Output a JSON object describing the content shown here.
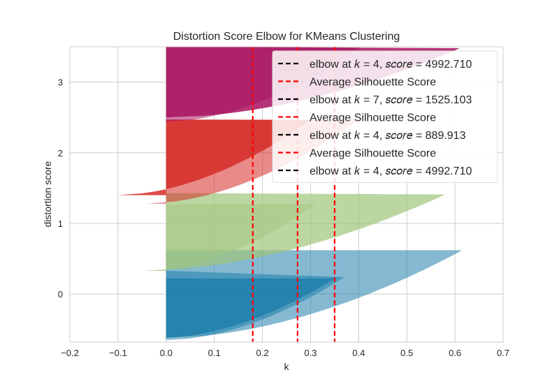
{
  "chart_data": {
    "type": "area",
    "title": "Distortion Score Elbow for KMeans Clustering",
    "xlabel": "k",
    "ylabel": "distortion score",
    "xlim": [
      -0.2,
      0.7
    ],
    "ylim": [
      -0.68,
      3.5
    ],
    "xticks": [
      -0.2,
      -0.1,
      0.0,
      0.1,
      0.2,
      0.3,
      0.4,
      0.5,
      0.6,
      0.7
    ],
    "xtick_labels": [
      "−0.2",
      "−0.1",
      "0.0",
      "0.1",
      "0.2",
      "0.3",
      "0.4",
      "0.5",
      "0.6",
      "0.7"
    ],
    "yticks": [
      0,
      1,
      2,
      3
    ],
    "ytick_labels": [
      "0",
      "1",
      "2",
      "3"
    ],
    "grid": true,
    "legend_position": "top-right",
    "colors": {
      "cluster_0": "#1f7fab",
      "cluster_1": "#9fc47b",
      "cluster_2": "#d62b26",
      "cluster_3": "#a8125f",
      "elbow_line": "#000000",
      "avg_line": "#ff0000"
    },
    "vlines": [
      {
        "x": 0.18,
        "color": "#ff0000"
      },
      {
        "x": 0.273,
        "color": "#ff0000"
      },
      {
        "x": 0.35,
        "color": "#ff0000"
      }
    ],
    "series": [
      {
        "cluster": 0,
        "color": "#1f7fab",
        "alpha": 0.85,
        "y_low": -0.62,
        "y_high": 0.22,
        "peak_y": 0.22,
        "max_x": 0.35,
        "min_x": -0.01
      },
      {
        "cluster": 0,
        "color": "#1f7fab",
        "alpha": 0.55,
        "y_low": -0.65,
        "y_high": 0.33,
        "peak_y": 0.24,
        "max_x": 0.37,
        "min_x": 0.0
      },
      {
        "cluster": 0,
        "color": "#1f7fab",
        "alpha": 0.55,
        "y_low": -0.62,
        "y_high": 0.62,
        "peak_y": 0.62,
        "max_x": 0.615,
        "min_x": 0.0
      },
      {
        "cluster": 1,
        "color": "#9fc47b",
        "alpha": 0.7,
        "y_low": 0.33,
        "y_high": 1.43,
        "peak_y": 1.41,
        "max_x": 0.58,
        "min_x": -0.05
      },
      {
        "cluster": 1,
        "color": "#9fc47b",
        "alpha": 0.5,
        "y_low": 0.33,
        "y_high": 1.27,
        "peak_y": 1.27,
        "max_x": 0.31,
        "min_x": -0.04
      },
      {
        "cluster": 2,
        "color": "#d62b26",
        "alpha": 0.85,
        "y_low": 1.4,
        "y_high": 2.47,
        "peak_y": 2.46,
        "max_x": 0.3,
        "min_x": -0.1
      },
      {
        "cluster": 2,
        "color": "#d62b26",
        "alpha": 0.55,
        "y_low": 1.28,
        "y_high": 2.47,
        "peak_y": 2.47,
        "max_x": 0.4,
        "min_x": -0.04
      },
      {
        "cluster": 3,
        "color": "#a8125f",
        "alpha": 0.85,
        "y_low": 2.5,
        "y_high": 3.5,
        "peak_y": 3.48,
        "max_x": 0.61,
        "min_x": 0.0
      },
      {
        "cluster": 3,
        "color": "#a8125f",
        "alpha": 0.55,
        "y_low": 2.44,
        "y_high": 3.5,
        "peak_y": 3.49,
        "max_x": 0.4,
        "min_x": 0.0
      }
    ],
    "legend": [
      {
        "label": "elbow at 𝑘 = 4, 𝑠𝑐𝑜𝑟𝑒 = 4992.710",
        "color": "#000000"
      },
      {
        "label": "Average Silhouette Score",
        "color": "#ff0000"
      },
      {
        "label": "elbow at 𝑘 = 7, 𝑠𝑐𝑜𝑟𝑒 = 1525.103",
        "color": "#000000"
      },
      {
        "label": "Average Silhouette Score",
        "color": "#ff0000"
      },
      {
        "label": "elbow at 𝑘 = 4, 𝑠𝑐𝑜𝑟𝑒 = 889.913",
        "color": "#000000"
      },
      {
        "label": "Average Silhouette Score",
        "color": "#ff0000"
      },
      {
        "label": "elbow at 𝑘 = 4, 𝑠𝑐𝑜𝑟𝑒 = 4992.710",
        "color": "#000000"
      }
    ]
  }
}
